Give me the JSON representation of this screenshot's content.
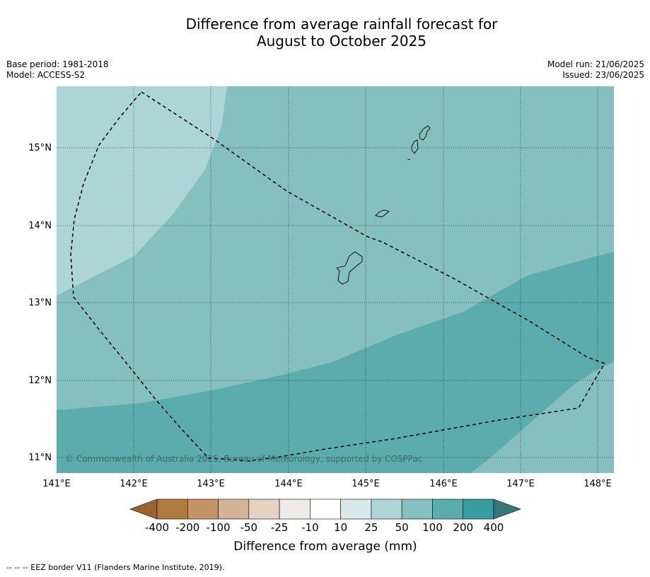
{
  "title": {
    "line1": "Difference from average rainfall forecast for",
    "line2": "August to October 2025"
  },
  "meta_left": {
    "base_period": "Base period: 1981-2018",
    "model": "Model: ACCESS-S2"
  },
  "meta_right": {
    "model_run": "Model run: 21/06/2025",
    "issued": "Issued: 23/06/2025"
  },
  "map": {
    "lat_labels": [
      "15°N",
      "14°N",
      "13°N",
      "12°N",
      "11°N"
    ],
    "lon_labels": [
      "141°E",
      "142°E",
      "143°E",
      "144°E",
      "145°E",
      "146°E",
      "147°E",
      "148°E"
    ],
    "copyright": "© Commonwealth of Australia 2025, Bureau of Meteorology, supported by COSPPac",
    "zone_colors": {
      "25_50": "#acd6d6",
      "50_100": "#85bfbf",
      "100_200": "#5bacac"
    }
  },
  "colorbar": {
    "labels": [
      "-400",
      "-200",
      "-100",
      "-50",
      "-25",
      "-10",
      "10",
      "25",
      "50",
      "100",
      "200",
      "400"
    ],
    "colors": [
      "#9b6330",
      "#b07b3f",
      "#c29468",
      "#d4b294",
      "#e6d2c0",
      "#eeeae6",
      "#ffffff",
      "#d6ebe9",
      "#acd6d6",
      "#85bfbf",
      "#5bacac",
      "#369e9e",
      "#367878"
    ],
    "title": "Difference from average (mm)"
  },
  "footnote": "--  --  -- EEZ border V11 (Flanders Marine Institute, 2019)."
}
